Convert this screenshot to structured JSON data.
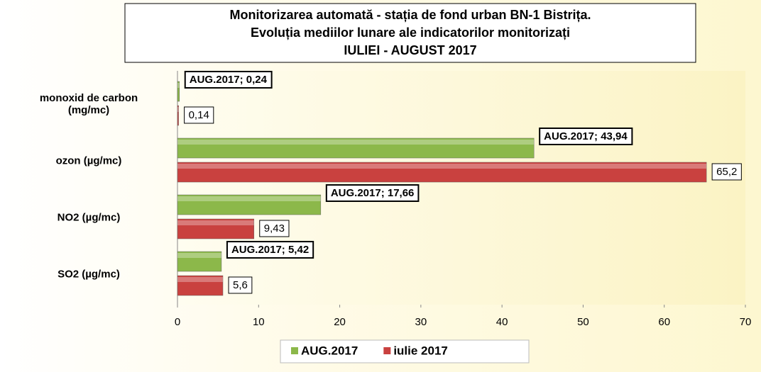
{
  "chart_data": {
    "type": "hbar",
    "title": [
      "Monitorizarea automată - stația de fond urban BN-1 Bistrița.",
      "Evoluția mediilor lunare ale indicatorilor monitorizați",
      "IULIEI  - AUGUST  2017"
    ],
    "categories": [
      "monoxid de carbon (mg/mc)",
      "ozon (µg/mc)",
      "NO2 (µg/mc)",
      "SO2 (µg/mc)"
    ],
    "series": [
      {
        "name": "AUG.2017",
        "color": "#8cb84a",
        "values": [
          0.24,
          43.94,
          17.66,
          5.42
        ],
        "value_labels": [
          "AUG.2017; 0,24",
          "AUG.2017; 43,94",
          "AUG.2017; 17,66",
          "AUG.2017; 5,42"
        ]
      },
      {
        "name": "iulie 2017",
        "color": "#c9413f",
        "values": [
          0.14,
          65.2,
          9.43,
          5.6
        ],
        "value_labels": [
          "0,14",
          "65,2",
          "9,43",
          "5,6"
        ]
      }
    ],
    "xlim": [
      0,
      70
    ],
    "xticks": [
      0,
      10,
      20,
      30,
      40,
      50,
      60,
      70
    ],
    "legend": "bottom"
  }
}
